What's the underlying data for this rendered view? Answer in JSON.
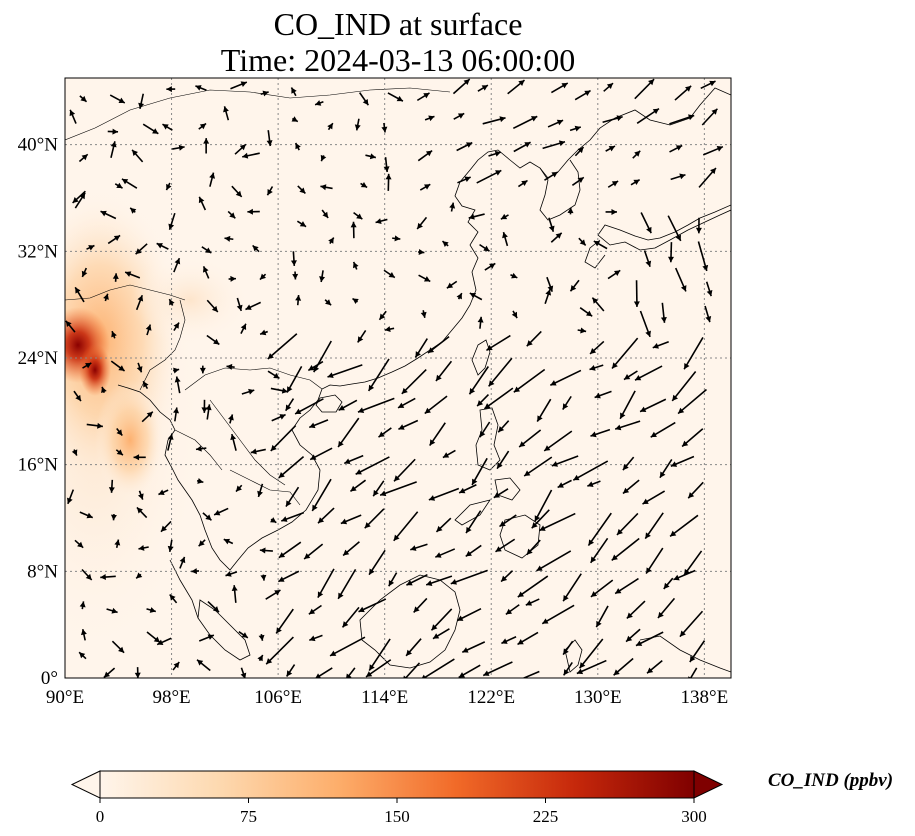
{
  "figure": {
    "title_line1": "CO_IND at surface",
    "title_line2": "Time: 2024-03-13 06:00:00"
  },
  "map": {
    "lon_range": [
      90,
      140
    ],
    "lat_range": [
      0,
      45
    ],
    "lon_ticks": [
      "90°E",
      "98°E",
      "106°E",
      "114°E",
      "122°E",
      "130°E",
      "138°E"
    ],
    "lat_ticks": [
      "0°",
      "8°N",
      "16°N",
      "24°N",
      "32°N",
      "40°N"
    ],
    "gridlines": true,
    "field_colormap": [
      "#fff5eb",
      "#fdd9b0",
      "#fdae6b",
      "#f16a28",
      "#c6280b",
      "#7f0000"
    ],
    "land_outline_color": "#000000",
    "vector_color": "#000000"
  },
  "colorbar": {
    "label": "CO_IND (ppbv)",
    "range": [
      0,
      300
    ],
    "ticks": [
      "0",
      "75",
      "150",
      "225",
      "300"
    ],
    "extend": "both"
  }
}
